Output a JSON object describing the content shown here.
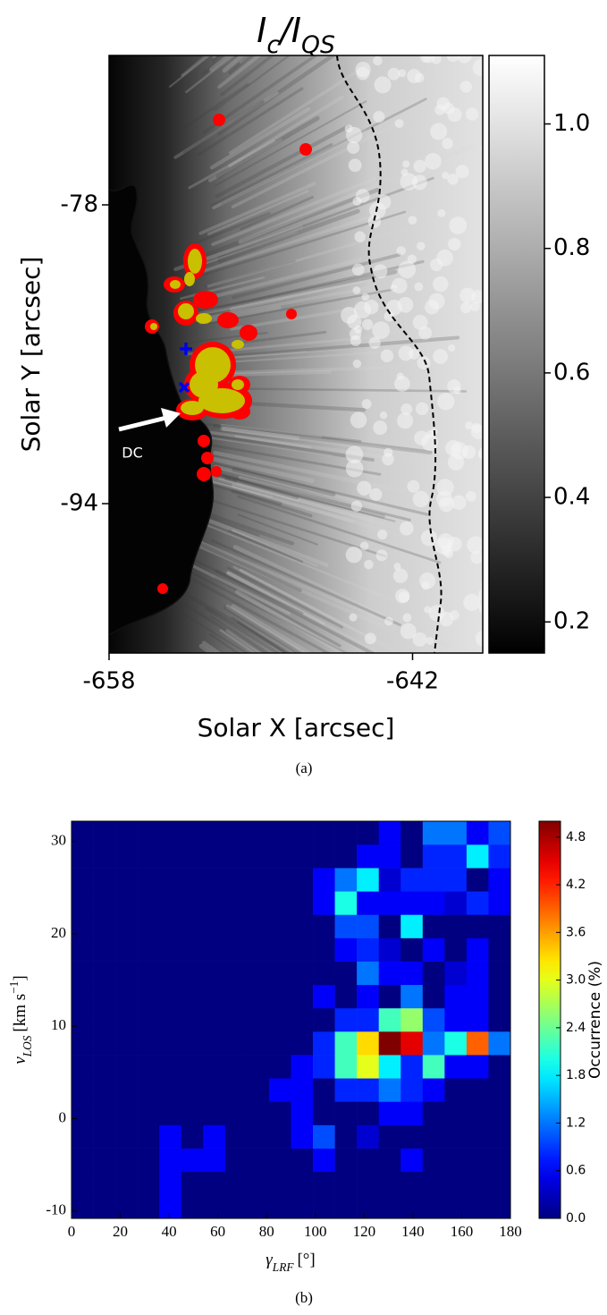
{
  "chart_data": [
    {
      "type": "image",
      "title": [
        "I",
        "c",
        "/I",
        "QS"
      ],
      "xlabel": "Solar X [arcsec]",
      "ylabel": "Solar Y [arcsec]",
      "xlim": [
        -658,
        -638.3
      ],
      "ylim": [
        -102,
        -70
      ],
      "xticks": [
        -658,
        -642
      ],
      "yticks": [
        -78,
        -94
      ],
      "cmap": "gray",
      "clim": [
        0.15,
        1.11
      ],
      "cticks": [
        0.2,
        0.4,
        0.6,
        0.8,
        {
          "value": 1,
          "label": "1.0"
        }
      ],
      "annotation": "DC",
      "caption": "(a)"
    },
    {
      "type": "heatmap",
      "xlabel": [
        "γ",
        "LRF",
        "[°]"
      ],
      "ylabel": [
        "v",
        "LOS",
        "[km s",
        "−1",
        "]"
      ],
      "xlim": [
        0,
        180
      ],
      "ylim": [
        -10.8,
        32.2
      ],
      "xticks": [
        0,
        20,
        40,
        60,
        80,
        100,
        120,
        140,
        160,
        180
      ],
      "yticks": [
        -10,
        0,
        10,
        20,
        30
      ],
      "x_bins": [
        0,
        9,
        18,
        27,
        36,
        45,
        54,
        63,
        72,
        81,
        90,
        99,
        108,
        117,
        126,
        135,
        144,
        153,
        162,
        171,
        180
      ],
      "y_bins": [
        -10.8,
        -8.27,
        -5.74,
        -3.21,
        -0.68,
        1.85,
        4.38,
        6.91,
        9.44,
        11.97,
        14.5,
        17.03,
        19.56,
        22.09,
        24.62,
        27.15,
        29.68,
        32.2
      ],
      "z": [
        [
          0,
          0,
          0,
          0,
          0.6,
          0,
          0,
          0,
          0,
          0,
          0,
          0,
          0,
          0,
          0,
          0,
          0,
          0,
          0,
          0
        ],
        [
          0,
          0,
          0,
          0,
          0.6,
          0,
          0,
          0,
          0,
          0,
          0,
          0,
          0,
          0,
          0,
          0,
          0,
          0,
          0,
          0
        ],
        [
          0,
          0,
          0,
          0,
          0.6,
          0.6,
          0.6,
          0,
          0,
          0,
          0,
          0.6,
          0,
          0,
          0,
          0.6,
          0,
          0,
          0,
          0
        ],
        [
          0,
          0,
          0,
          0,
          0.6,
          0,
          0.6,
          0,
          0,
          0,
          0.6,
          1.0,
          0,
          0.4,
          0,
          0,
          0,
          0,
          0,
          0
        ],
        [
          0,
          0,
          0,
          0,
          0,
          0,
          0,
          0,
          0,
          0,
          0.6,
          0,
          0,
          0,
          0.6,
          0.6,
          0,
          0,
          0,
          0
        ],
        [
          0,
          0,
          0,
          0,
          0,
          0,
          0,
          0,
          0,
          0.6,
          0.6,
          0,
          0.8,
          0.8,
          1.2,
          0.8,
          0.6,
          0,
          0,
          0
        ],
        [
          0,
          0,
          0,
          0,
          0,
          0,
          0,
          0,
          0,
          0,
          0.6,
          0.8,
          2.2,
          3.0,
          1.8,
          0.8,
          2.2,
          0.6,
          0.6,
          0
        ],
        [
          0,
          0,
          0,
          0,
          0,
          0,
          0,
          0,
          0,
          0,
          0,
          0.8,
          2.2,
          3.3,
          5.0,
          4.5,
          1.2,
          2.0,
          3.9,
          1.2
        ],
        [
          0,
          0,
          0,
          0,
          0,
          0,
          0,
          0,
          0,
          0,
          0,
          0,
          0.8,
          0.8,
          2.2,
          2.6,
          1.0,
          0.6,
          0.6,
          0
        ],
        [
          0,
          0,
          0,
          0,
          0,
          0,
          0,
          0,
          0,
          0,
          0,
          0.6,
          0,
          0.6,
          0,
          1.2,
          0,
          0.6,
          0.6,
          0
        ],
        [
          0,
          0,
          0,
          0,
          0,
          0,
          0,
          0,
          0,
          0,
          0,
          0,
          0,
          1.2,
          0.6,
          0.6,
          0,
          0.4,
          0.6,
          0
        ],
        [
          0,
          0,
          0,
          0,
          0,
          0,
          0,
          0,
          0,
          0,
          0,
          0,
          0.6,
          0.8,
          0.4,
          0,
          0.6,
          0,
          0.6,
          0
        ],
        [
          0,
          0,
          0,
          0,
          0,
          0,
          0,
          0,
          0,
          0,
          0,
          0,
          1.0,
          1.0,
          0,
          1.8,
          0,
          0,
          0,
          0
        ],
        [
          0,
          0,
          0,
          0,
          0,
          0,
          0,
          0,
          0,
          0,
          0,
          0.6,
          2.0,
          0.6,
          0.6,
          0.6,
          0.6,
          0.4,
          0.8,
          0.6
        ],
        [
          0,
          0,
          0,
          0,
          0,
          0,
          0,
          0,
          0,
          0,
          0,
          0.6,
          1.2,
          1.8,
          0.4,
          0.8,
          0.8,
          0.8,
          0,
          0.6
        ],
        [
          0,
          0,
          0,
          0,
          0,
          0,
          0,
          0,
          0,
          0,
          0,
          0,
          0,
          0.6,
          0.6,
          0,
          0.8,
          0.8,
          1.8,
          0.8
        ],
        [
          0,
          0,
          0,
          0,
          0,
          0,
          0,
          0,
          0,
          0,
          0,
          0,
          0,
          0,
          0.6,
          0,
          1.2,
          1.2,
          0.6,
          1.0
        ]
      ],
      "cmap": "jet",
      "clim": [
        0,
        5.0
      ],
      "cticks": [
        {
          "value": 0,
          "label": "0.0"
        },
        0.6,
        1.2,
        1.8,
        2.4,
        {
          "value": 3,
          "label": "3.0"
        },
        3.6,
        4.2,
        4.8
      ],
      "clabel": "Occurrence (%)",
      "caption": "(b)"
    }
  ]
}
